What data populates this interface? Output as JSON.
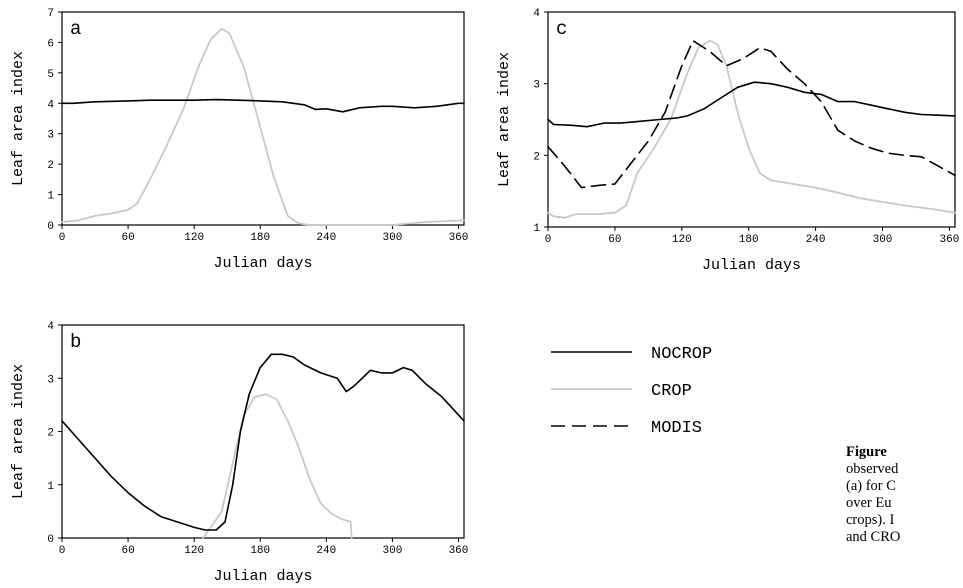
{
  "legend": {
    "items": [
      {
        "name": "NOCROP",
        "color": "#000000",
        "dash": "solid"
      },
      {
        "name": "CROP",
        "color": "#c8c8c8",
        "dash": "solid"
      },
      {
        "name": "MODIS",
        "color": "#000000",
        "dash": "dashed"
      }
    ]
  },
  "caption": {
    "word": "Figure",
    "lines": [
      "observed",
      "(a) for C",
      "over Eu",
      "crops). I",
      "and CRO"
    ]
  },
  "chart_data": [
    {
      "type": "line",
      "panel_label": "a",
      "xlabel": "Julian days",
      "ylabel": "Leaf area index",
      "xlim": [
        0,
        365
      ],
      "ylim": [
        0,
        7
      ],
      "xticks": [
        0,
        60,
        120,
        180,
        240,
        300,
        360
      ],
      "yticks": [
        0,
        1,
        2,
        3,
        4,
        5,
        6,
        7
      ],
      "series": [
        {
          "name": "NOCROP",
          "color": "#000000",
          "dash": "solid",
          "x": [
            0,
            10,
            30,
            60,
            80,
            100,
            120,
            140,
            160,
            180,
            200,
            220,
            230,
            240,
            255,
            270,
            290,
            300,
            320,
            340,
            360,
            365
          ],
          "y": [
            4.0,
            4.0,
            4.05,
            4.08,
            4.1,
            4.1,
            4.1,
            4.12,
            4.1,
            4.08,
            4.05,
            3.95,
            3.8,
            3.82,
            3.72,
            3.85,
            3.9,
            3.9,
            3.85,
            3.9,
            4.0,
            4.0
          ]
        },
        {
          "name": "CROP",
          "color": "#c8c8c8",
          "dash": "solid",
          "x": [
            0,
            15,
            30,
            45,
            60,
            68,
            80,
            95,
            110,
            125,
            135,
            145,
            152,
            165,
            178,
            192,
            205,
            215,
            225,
            240,
            270,
            300,
            330,
            365
          ],
          "y": [
            0.1,
            0.15,
            0.3,
            0.38,
            0.5,
            0.7,
            1.5,
            2.6,
            3.8,
            5.3,
            6.1,
            6.45,
            6.3,
            5.2,
            3.5,
            1.6,
            0.3,
            0.05,
            0.0,
            0.0,
            0.0,
            0.0,
            0.1,
            0.15
          ]
        }
      ]
    },
    {
      "type": "line",
      "panel_label": "b",
      "xlabel": "Julian days",
      "ylabel": "Leaf area index",
      "xlim": [
        0,
        365
      ],
      "ylim": [
        0,
        4
      ],
      "xticks": [
        0,
        60,
        120,
        180,
        240,
        300,
        360
      ],
      "yticks": [
        0,
        1,
        2,
        3,
        4
      ],
      "series": [
        {
          "name": "NOCROP",
          "color": "#000000",
          "dash": "solid",
          "x": [
            0,
            15,
            30,
            45,
            60,
            75,
            90,
            105,
            120,
            130,
            140,
            148,
            155,
            162,
            170,
            180,
            190,
            200,
            210,
            220,
            235,
            250,
            258,
            265,
            280,
            290,
            300,
            310,
            318,
            330,
            345,
            365
          ],
          "y": [
            2.2,
            1.85,
            1.5,
            1.15,
            0.85,
            0.6,
            0.4,
            0.3,
            0.2,
            0.15,
            0.15,
            0.3,
            1.0,
            2.0,
            2.7,
            3.2,
            3.45,
            3.45,
            3.4,
            3.25,
            3.1,
            3.0,
            2.75,
            2.85,
            3.15,
            3.1,
            3.1,
            3.2,
            3.15,
            2.9,
            2.65,
            2.2
          ]
        },
        {
          "name": "CROP",
          "color": "#c8c8c8",
          "dash": "solid",
          "x": [
            128,
            135,
            145,
            155,
            165,
            175,
            185,
            195,
            205,
            215,
            225,
            235,
            245,
            255,
            262,
            263
          ],
          "y": [
            0.0,
            0.2,
            0.5,
            1.4,
            2.3,
            2.65,
            2.7,
            2.6,
            2.2,
            1.7,
            1.1,
            0.65,
            0.45,
            0.35,
            0.3,
            0.0
          ]
        }
      ]
    },
    {
      "type": "line",
      "panel_label": "c",
      "xlabel": "Julian days",
      "ylabel": "Leaf area index",
      "xlim": [
        0,
        365
      ],
      "ylim": [
        1,
        4
      ],
      "xticks": [
        0,
        60,
        120,
        180,
        240,
        300,
        360
      ],
      "yticks": [
        1,
        2,
        3,
        4
      ],
      "series": [
        {
          "name": "NOCROP",
          "color": "#000000",
          "dash": "solid",
          "x": [
            0,
            5,
            20,
            35,
            50,
            65,
            80,
            100,
            115,
            125,
            140,
            155,
            170,
            185,
            200,
            215,
            230,
            245,
            260,
            275,
            290,
            305,
            320,
            335,
            350,
            365
          ],
          "y": [
            2.5,
            2.43,
            2.42,
            2.4,
            2.45,
            2.45,
            2.47,
            2.5,
            2.52,
            2.55,
            2.65,
            2.8,
            2.95,
            3.02,
            3.0,
            2.95,
            2.88,
            2.85,
            2.75,
            2.75,
            2.7,
            2.65,
            2.6,
            2.57,
            2.56,
            2.55
          ]
        },
        {
          "name": "CROP",
          "color": "#c8c8c8",
          "dash": "solid",
          "x": [
            0,
            5,
            15,
            25,
            45,
            60,
            70,
            80,
            95,
            110,
            125,
            135,
            145,
            152,
            160,
            170,
            180,
            190,
            200,
            220,
            240,
            260,
            280,
            300,
            320,
            345,
            365
          ],
          "y": [
            1.2,
            1.15,
            1.13,
            1.18,
            1.18,
            1.2,
            1.3,
            1.75,
            2.1,
            2.5,
            3.15,
            3.5,
            3.6,
            3.55,
            3.25,
            2.6,
            2.1,
            1.75,
            1.65,
            1.6,
            1.55,
            1.48,
            1.4,
            1.35,
            1.3,
            1.25,
            1.2
          ]
        },
        {
          "name": "MODIS",
          "color": "#000000",
          "dash": "dashed",
          "x": [
            0,
            15,
            30,
            45,
            60,
            75,
            90,
            105,
            120,
            130,
            145,
            160,
            175,
            190,
            200,
            215,
            230,
            245,
            260,
            275,
            290,
            305,
            320,
            335,
            350,
            365
          ],
          "y": [
            2.12,
            1.85,
            1.55,
            1.58,
            1.6,
            1.9,
            2.2,
            2.6,
            3.25,
            3.6,
            3.45,
            3.25,
            3.35,
            3.5,
            3.45,
            3.2,
            3.0,
            2.75,
            2.35,
            2.2,
            2.1,
            2.03,
            2.0,
            1.98,
            1.85,
            1.72
          ]
        }
      ]
    }
  ]
}
